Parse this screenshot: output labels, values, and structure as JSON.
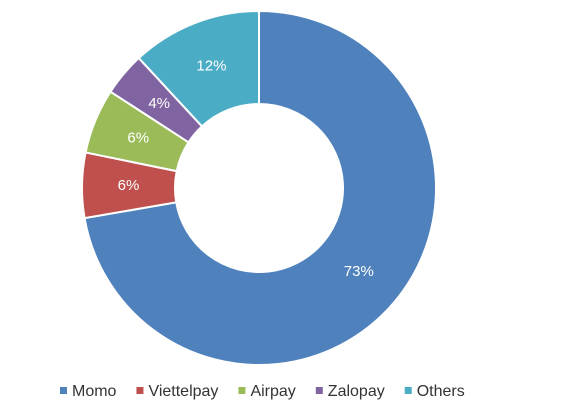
{
  "chart_data": {
    "type": "donut",
    "categories": [
      "Momo",
      "Viettelpay",
      "Airpay",
      "Zalopay",
      "Others"
    ],
    "values": [
      73,
      6,
      6,
      4,
      12
    ],
    "value_labels": [
      "73%",
      "6%",
      "6%",
      "4%",
      "12%"
    ],
    "colors": [
      "#4f81bd",
      "#c0504d",
      "#9bbb59",
      "#8064a2",
      "#4bacc6"
    ],
    "legend": "bottom"
  }
}
